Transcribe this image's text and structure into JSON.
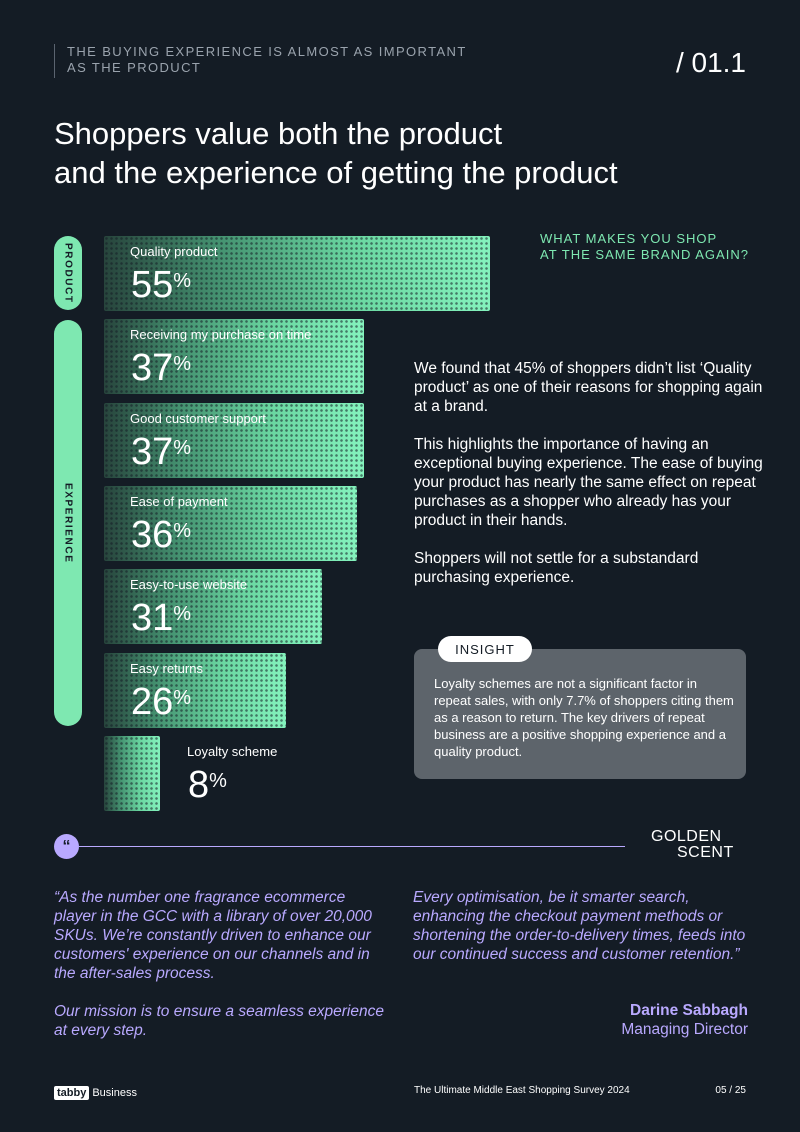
{
  "header": {
    "kicker_lines": [
      "THE BUYING EXPERIENCE IS ALMOST AS IMPORTANT",
      "AS THE PRODUCT"
    ],
    "page_id": "/ 01.1"
  },
  "title_lines": [
    "Shoppers value both the product",
    "and the experience of getting the product"
  ],
  "groups": {
    "product": "PRODUCT",
    "experience": "EXPERIENCE"
  },
  "chart_data": {
    "type": "bar",
    "orientation": "horizontal",
    "title": "WHAT MAKES YOU SHOP AT THE SAME BRAND AGAIN?",
    "title_lines": [
      "WHAT MAKES YOU SHOP",
      "AT THE SAME BRAND AGAIN?"
    ],
    "categories": [
      "Quality product",
      "Receiving my purchase on time",
      "Good customer support",
      "Ease of payment",
      "Easy-to-use website",
      "Easy returns",
      "Loyalty scheme"
    ],
    "values": [
      55,
      37,
      37,
      36,
      31,
      26,
      8
    ],
    "unit": "%",
    "groups": [
      {
        "name": "PRODUCT",
        "categories": [
          "Quality product"
        ]
      },
      {
        "name": "EXPERIENCE",
        "categories": [
          "Receiving my purchase on time",
          "Good customer support",
          "Ease of payment",
          "Easy-to-use website",
          "Easy returns",
          "Loyalty scheme"
        ]
      }
    ],
    "xlim": [
      0,
      55
    ],
    "colors": {
      "bar_start": "#27443c",
      "bar_end": "#84f2bd"
    }
  },
  "body_paragraphs": [
    "We found that 45% of shoppers didn’t list ‘Quality product’ as one of their reasons for shopping again at a brand.",
    "This highlights the importance of having an exceptional buying experience. The ease of buying your product has nearly the same effect on repeat purchases as a shopper who already has your product in their hands.",
    "Shoppers will not settle for a substandard purchasing experience."
  ],
  "insight": {
    "tag": "INSIGHT",
    "text": "Loyalty schemes are not a significant factor in repeat sales, with only 7.7% of shoppers citing them as a reason to return. The key drivers of repeat business are a positive shopping experience and a quality product."
  },
  "quote": {
    "badge": "“",
    "logo_lines": [
      "GOLDEN",
      "SCENT"
    ],
    "left_paragraphs": [
      "“As the number one fragrance ecommerce player in the GCC with a library of over 20,000 SKUs. We’re constantly driven to enhance our customers' experience on our channels and in the after-sales process.",
      "Our mission is to ensure a seamless experience at every step."
    ],
    "right_paragraphs": [
      "Every optimisation, be it smarter search, enhancing the checkout payment methods or shortening the order-to-delivery times, feeds into our continued success and customer retention.”"
    ],
    "speaker_name": "Darine Sabbagh",
    "speaker_role": "Managing Director"
  },
  "footer": {
    "brand_mark": "tabby",
    "brand_sub": "Business",
    "title": "The Ultimate Middle East Shopping Survey 2024",
    "page": "05 / 25"
  },
  "colors": {
    "background": "#141c25",
    "accent_green": "#7ee8b1",
    "accent_purple": "#b9a9ff",
    "insight_box": "#5d646b"
  }
}
